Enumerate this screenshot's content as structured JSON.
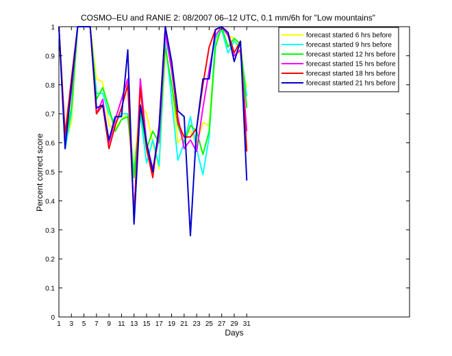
{
  "chart_data": {
    "type": "line",
    "title": "COSMO–EU and RANIE 2: 08/2007 06–12 UTC, 0.1 mm/6h for \"Low mountains\"",
    "xlabel": "Days",
    "ylabel": "Percent correct score",
    "xlim": [
      1,
      57
    ],
    "ylim": [
      0,
      1
    ],
    "xticks": [
      1,
      3,
      5,
      7,
      9,
      11,
      13,
      15,
      17,
      19,
      21,
      23,
      25,
      27,
      29,
      31
    ],
    "yticks": [
      0,
      0.1,
      0.2,
      0.3,
      0.4,
      0.5,
      0.6,
      0.7,
      0.8,
      0.9,
      1
    ],
    "ytick_labels": [
      "0",
      "0.1",
      "0.2",
      "0.3",
      "0.4",
      "0.5",
      "0.6",
      "0.7",
      "0.8",
      "0.9",
      "1"
    ],
    "grid": false,
    "legend_position": "top-right",
    "x": [
      1,
      2,
      3,
      4,
      5,
      6,
      7,
      8,
      9,
      10,
      11,
      12,
      13,
      14,
      15,
      16,
      17,
      18,
      19,
      20,
      21,
      22,
      23,
      24,
      25,
      26,
      27,
      28,
      29,
      30,
      31
    ],
    "series": [
      {
        "name": "forecast started 6 hrs before",
        "color": "#ffff00",
        "values": [
          1.0,
          0.6,
          0.67,
          1.0,
          1.0,
          1.0,
          0.82,
          0.81,
          0.66,
          0.65,
          0.68,
          0.7,
          0.52,
          0.73,
          0.7,
          0.6,
          0.51,
          0.92,
          0.8,
          0.6,
          0.63,
          0.64,
          0.6,
          0.67,
          0.66,
          0.95,
          1.0,
          0.97,
          0.96,
          0.9,
          0.79
        ]
      },
      {
        "name": "forecast started 9 hrs before",
        "color": "#00ffff",
        "values": [
          1.0,
          0.58,
          0.7,
          1.0,
          1.0,
          1.0,
          0.77,
          0.77,
          0.7,
          0.67,
          0.7,
          0.7,
          0.5,
          0.7,
          0.53,
          0.61,
          0.52,
          0.95,
          0.75,
          0.54,
          0.6,
          0.69,
          0.58,
          0.49,
          0.62,
          0.96,
          0.99,
          0.91,
          0.95,
          0.93,
          0.76
        ]
      },
      {
        "name": "forecast started 12 hrs before",
        "color": "#00ff00",
        "values": [
          1.0,
          0.6,
          0.72,
          1.0,
          1.0,
          1.0,
          0.75,
          0.79,
          0.72,
          0.64,
          0.68,
          0.69,
          0.48,
          0.72,
          0.58,
          0.64,
          0.6,
          0.93,
          0.8,
          0.66,
          0.6,
          0.66,
          0.64,
          0.56,
          0.64,
          0.93,
          1.0,
          0.93,
          0.96,
          0.94,
          0.72
        ]
      },
      {
        "name": "forecast started 15 hrs before",
        "color": "#ff00ff",
        "values": [
          1.0,
          0.6,
          0.78,
          1.0,
          1.0,
          1.0,
          0.7,
          0.75,
          0.6,
          0.68,
          0.75,
          0.82,
          0.34,
          0.82,
          0.6,
          0.51,
          0.62,
          0.98,
          0.85,
          0.69,
          0.58,
          0.61,
          0.57,
          0.72,
          0.85,
          0.97,
          1.0,
          0.97,
          0.9,
          0.92,
          0.64
        ]
      },
      {
        "name": "forecast started 18 hrs before",
        "color": "#ff0000",
        "values": [
          1.0,
          0.63,
          0.82,
          1.0,
          1.0,
          1.0,
          0.7,
          0.73,
          0.58,
          0.66,
          0.72,
          0.8,
          0.35,
          0.79,
          0.58,
          0.48,
          0.66,
          1.0,
          0.88,
          0.67,
          0.62,
          0.62,
          0.65,
          0.8,
          0.93,
          0.99,
          1.0,
          0.98,
          0.91,
          0.95,
          0.57
        ]
      },
      {
        "name": "forecast started 21 hrs before",
        "color": "#0000cc",
        "values": [
          1.0,
          0.58,
          0.8,
          1.0,
          1.0,
          1.0,
          0.72,
          0.73,
          0.61,
          0.69,
          0.69,
          0.92,
          0.32,
          0.73,
          0.6,
          0.5,
          0.65,
          1.0,
          0.88,
          0.71,
          0.69,
          0.28,
          0.65,
          0.82,
          0.82,
          0.99,
          1.0,
          0.98,
          0.88,
          0.95,
          0.47
        ]
      }
    ]
  }
}
